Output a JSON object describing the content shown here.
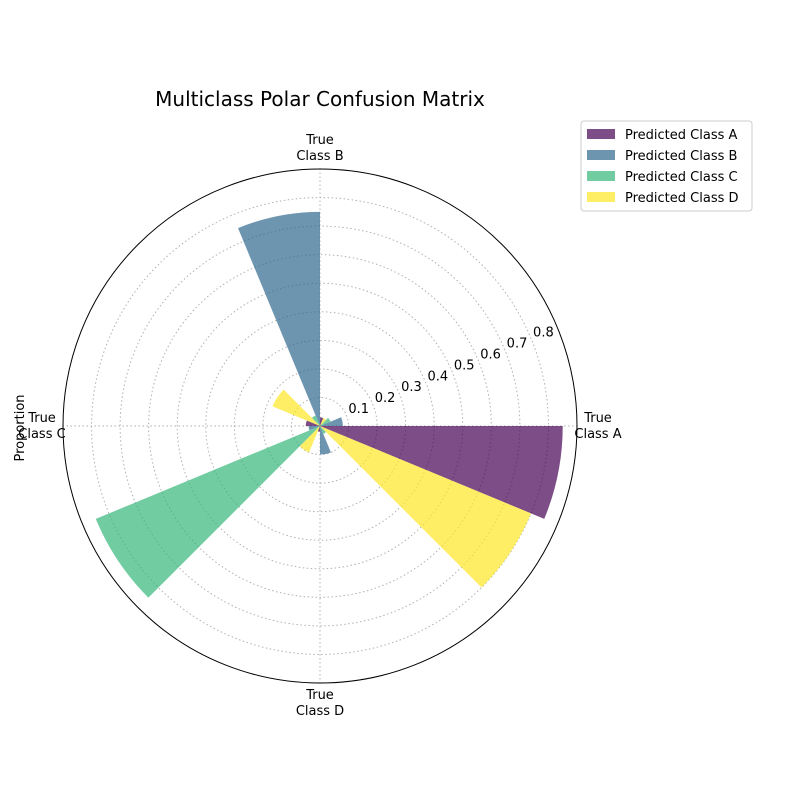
{
  "chart_data": {
    "type": "polar-bar",
    "title": "Multiclass Polar Confusion Matrix",
    "ylabel": "Proportion",
    "rlim": [
      0,
      0.9
    ],
    "rticks": [
      0.1,
      0.2,
      0.3,
      0.4,
      0.5,
      0.6,
      0.7,
      0.8
    ],
    "grid": true,
    "legend_position": "top-right",
    "categories": [
      [
        "True",
        "Class A"
      ],
      [
        "True",
        "Class B"
      ],
      [
        "True",
        "Class C"
      ],
      [
        "True",
        "Class D"
      ]
    ],
    "series": [
      {
        "name": "Predicted Class A",
        "color": "#440154",
        "values": [
          0.85,
          0.03,
          0.05,
          0.02
        ]
      },
      {
        "name": "Predicted Class B",
        "color": "#31688e",
        "values": [
          0.08,
          0.75,
          0.04,
          0.1
        ]
      },
      {
        "name": "Predicted Class C",
        "color": "#35b779",
        "values": [
          0.04,
          0.04,
          0.85,
          0.03
        ]
      },
      {
        "name": "Predicted Class D",
        "color": "#fde725",
        "values": [
          0.03,
          0.18,
          0.1,
          0.8
        ]
      }
    ]
  }
}
